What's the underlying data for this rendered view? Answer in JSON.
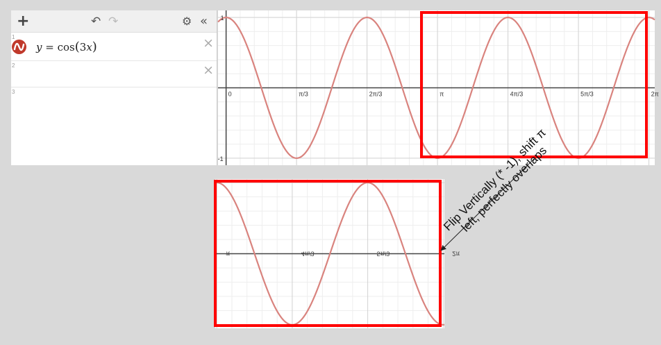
{
  "toolbar": {
    "add_label": "+",
    "undo_icon": "undo-icon",
    "redo_icon": "redo-icon",
    "settings_icon": "gear-icon",
    "collapse_icon": "double-chevron-left-icon"
  },
  "expressions": [
    {
      "index": "1",
      "latex": "y = cos(3x)",
      "lhs": "y",
      "eq": " = ",
      "fn": "cos",
      "arg_open": "(",
      "arg": "3x",
      "arg_close": ")",
      "color": "#c0392b",
      "close": "×"
    },
    {
      "index": "2",
      "latex": "",
      "close": "×"
    },
    {
      "index": "3",
      "latex": ""
    }
  ],
  "chart_data": [
    {
      "type": "line",
      "function": "y = cos(3x)",
      "xlim": [
        -0.12,
        6.37
      ],
      "ylim": [
        -1.1,
        1.1
      ],
      "grid": true,
      "x_tick_labels": [
        "0",
        "π/3",
        "2π/3",
        "π",
        "4π/3",
        "5π/3",
        "2π"
      ],
      "y_tick_labels": [
        "1",
        "-1"
      ],
      "series": [
        {
          "color": "#d9837e"
        }
      ]
    },
    {
      "type": "line",
      "function": "flipped copy of y = cos(3x) on [π, 2π]",
      "xlim": [
        3.12,
        6.3
      ],
      "ylim": [
        -1.05,
        1.05
      ],
      "grid": true,
      "x_tick_labels": [
        "π",
        "4π/3",
        "5π/3",
        "2π"
      ],
      "series": [
        {
          "color": "#d9837e"
        }
      ]
    }
  ],
  "annotation": {
    "text_line1": "Flip Vertically (* -1), shift π",
    "text_line2": "left, perfectly overlaps"
  },
  "colors": {
    "highlight": "#ff0000",
    "curve": "#d9837e",
    "axis": "#444444"
  }
}
